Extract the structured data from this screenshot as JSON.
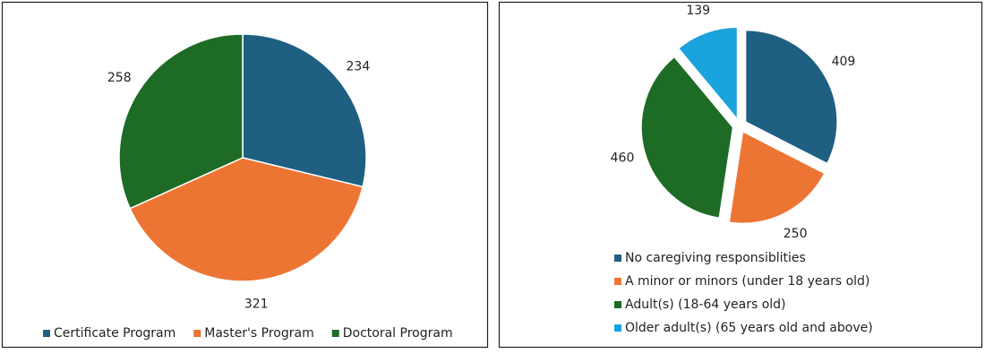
{
  "chart_data": [
    {
      "type": "pie",
      "categories": [
        "Certificate Program",
        "Master's Program",
        "Doctoral Program"
      ],
      "values": [
        234,
        321,
        258
      ],
      "colors": [
        "#1f5f82",
        "#ed7534",
        "#1e6b26"
      ],
      "legend": "bottom"
    },
    {
      "type": "pie",
      "categories": [
        "No caregiving responsiblities",
        "A minor or minors (under 18 years old)",
        "Adult(s) (18-64 years old)",
        "Older adult(s) (65 years old and above)"
      ],
      "values": [
        409,
        250,
        460,
        139
      ],
      "colors": [
        "#1f5f82",
        "#ed7534",
        "#1e6b26",
        "#1aa3dc"
      ],
      "legend": "bottom",
      "exploded": true
    }
  ]
}
